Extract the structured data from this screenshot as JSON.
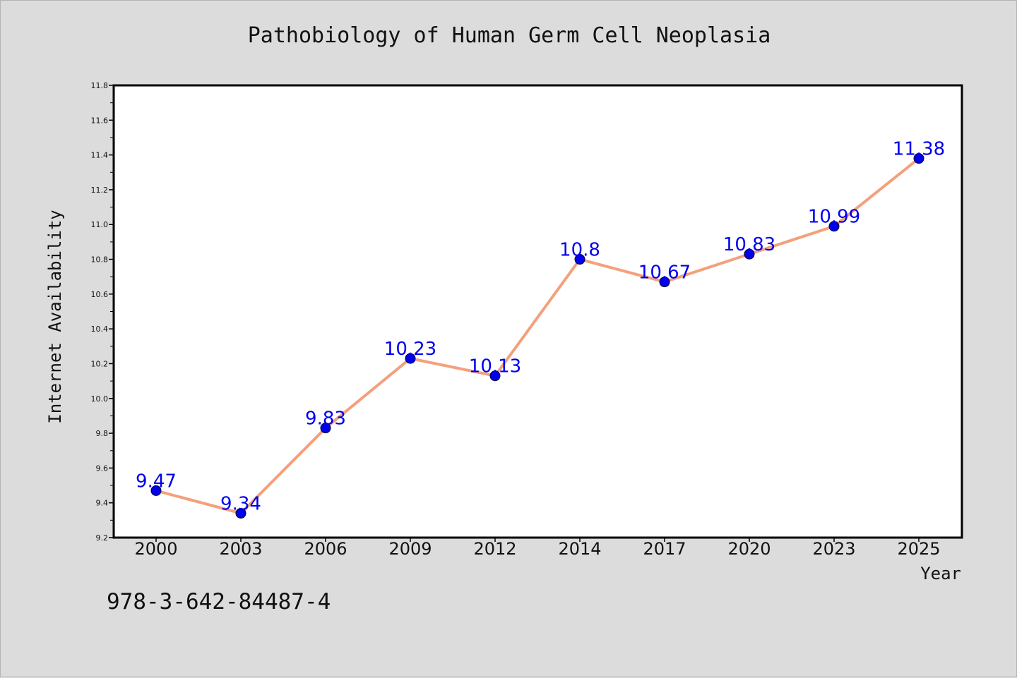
{
  "page": {
    "footer_code": "978-3-642-84487-4"
  },
  "chart_data": {
    "type": "line",
    "title": "Pathobiology of Human Germ Cell Neoplasia",
    "xlabel": "Year",
    "ylabel": "Internet Availability",
    "categories": [
      "2000",
      "2003",
      "2006",
      "2009",
      "2012",
      "2014",
      "2017",
      "2020",
      "2023",
      "2025"
    ],
    "series": [
      {
        "values": [
          9.47,
          9.34,
          9.83,
          10.23,
          10.13,
          10.8,
          10.67,
          10.83,
          10.99,
          11.38
        ],
        "data_labels": [
          "9.47",
          "9.34",
          "9.83",
          "10.23",
          "10.13",
          "10.8",
          "10.67",
          "10.83",
          "10.99",
          "11.38"
        ],
        "line_color": "#f4a07c",
        "marker_color": "#0000ee",
        "label_color": "#0000ee"
      }
    ],
    "ylim": [
      9.2,
      11.8
    ],
    "y_ticks": [
      "9.2",
      "9.4",
      "9.6",
      "9.8",
      "10.0",
      "10.2",
      "10.4",
      "10.6",
      "10.8",
      "11.0",
      "11.2",
      "11.4",
      "11.6",
      "11.8"
    ],
    "grid": false,
    "legend": "none"
  }
}
